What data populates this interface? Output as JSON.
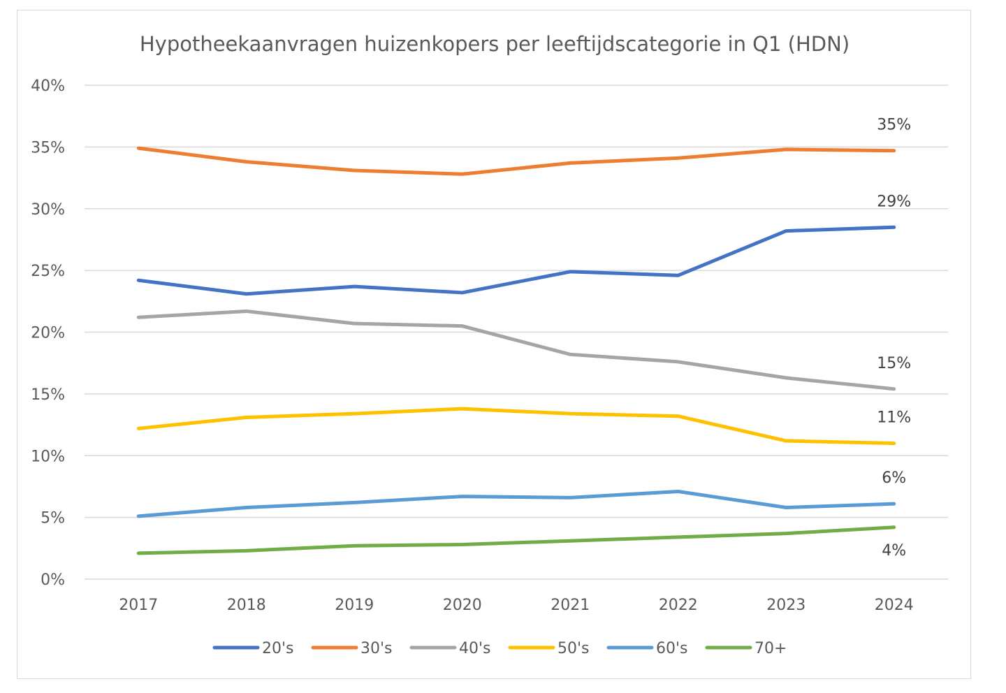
{
  "chart_data": {
    "type": "line",
    "title": "Hypotheekaanvragen huizenkopers per leeftijdscategorie in Q1 (HDN)",
    "xlabel": "",
    "ylabel": "",
    "categories": [
      "2017",
      "2018",
      "2019",
      "2020",
      "2021",
      "2022",
      "2023",
      "2024"
    ],
    "ylim": [
      0,
      40
    ],
    "yticks": [
      0,
      5,
      10,
      15,
      20,
      25,
      30,
      35,
      40
    ],
    "ytick_labels": [
      "0%",
      "5%",
      "10%",
      "15%",
      "20%",
      "25%",
      "30%",
      "35%",
      "40%"
    ],
    "grid": true,
    "legend_position": "bottom",
    "series": [
      {
        "name": "20's",
        "color": "#4472C4",
        "values": [
          24.2,
          23.1,
          23.7,
          23.2,
          24.9,
          24.6,
          28.2,
          28.5
        ],
        "end_label": "29%"
      },
      {
        "name": "30's",
        "color": "#ED7D31",
        "values": [
          34.9,
          33.8,
          33.1,
          32.8,
          33.7,
          34.1,
          34.8,
          34.7
        ],
        "end_label": "35%"
      },
      {
        "name": "40's",
        "color": "#A5A5A5",
        "values": [
          21.2,
          21.7,
          20.7,
          20.5,
          18.2,
          17.6,
          16.3,
          15.4
        ],
        "end_label": "15%"
      },
      {
        "name": "50's",
        "color": "#FFC000",
        "values": [
          12.2,
          13.1,
          13.4,
          13.8,
          13.4,
          13.2,
          11.2,
          11.0
        ],
        "end_label": "11%"
      },
      {
        "name": "60's",
        "color": "#5B9BD5",
        "values": [
          5.1,
          5.8,
          6.2,
          6.7,
          6.6,
          7.1,
          5.8,
          6.1
        ],
        "end_label": "6%"
      },
      {
        "name": "70+",
        "color": "#70AD47",
        "values": [
          2.1,
          2.3,
          2.7,
          2.8,
          3.1,
          3.4,
          3.7,
          4.2
        ],
        "end_label": "4%"
      }
    ]
  }
}
